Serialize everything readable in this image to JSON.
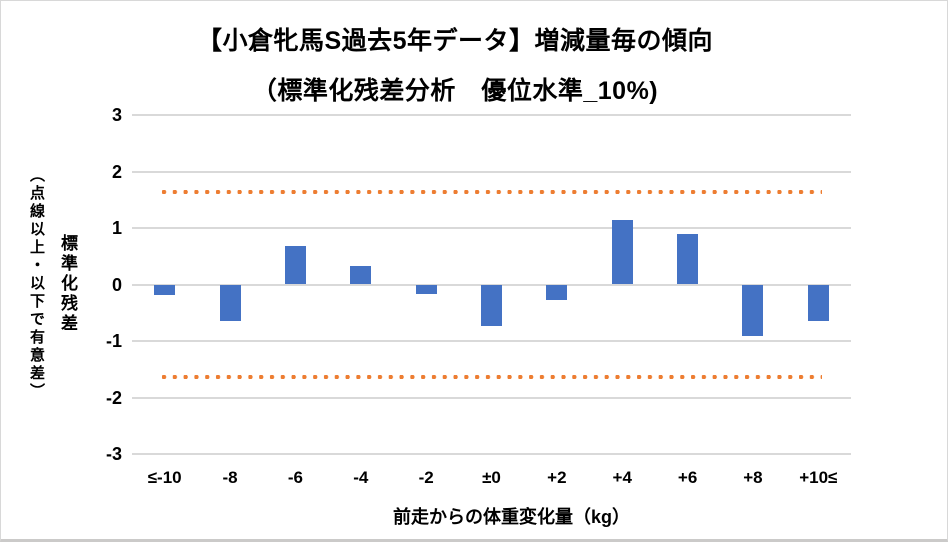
{
  "chart_data": {
    "type": "bar",
    "title": "【小倉牝馬S過去5年データ】増減量毎の傾向",
    "subtitle": "（標準化残差分析　優位水準_10%)",
    "categories": [
      "≤-10",
      "-8",
      "-6",
      "-4",
      "-2",
      "±0",
      "+2",
      "+4",
      "+6",
      "+8",
      "+10≤"
    ],
    "values": [
      -0.19,
      -0.65,
      0.68,
      0.33,
      -0.16,
      -0.74,
      -0.28,
      1.14,
      0.9,
      -0.92,
      -0.64
    ],
    "thresholds": {
      "upper": 1.645,
      "lower": -1.645
    },
    "xlabel": "前走からの体重変化量（kg）",
    "ylabel": "標準化残差",
    "ylabel_note": "（点線以上・以下で有意差）",
    "ylim": [
      -3,
      3
    ],
    "yticks": [
      3,
      2,
      1,
      0,
      -1,
      -2,
      -3
    ],
    "grid": true,
    "legend": "none",
    "colors": {
      "bar": "#4472C4",
      "threshold": "#ED7D31",
      "gridline": "#D9D9D9",
      "text": "#000000"
    }
  }
}
